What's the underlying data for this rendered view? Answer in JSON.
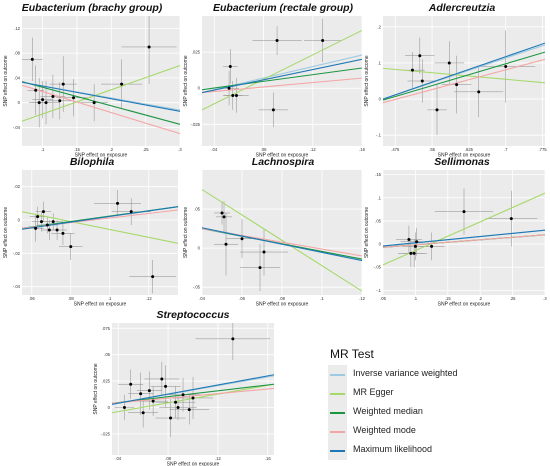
{
  "legend": {
    "title": "MR Test",
    "items": [
      {
        "label": "Inverse variance weighted",
        "color": "#9ecae1"
      },
      {
        "label": "MR Egger",
        "color": "#a6d96a"
      },
      {
        "label": "Weighted median",
        "color": "#1a9641"
      },
      {
        "label": "Weighted mode",
        "color": "#f4a6a6"
      },
      {
        "label": "Maximum likelihood",
        "color": "#1f78b4"
      }
    ]
  },
  "chart_data": [
    {
      "type": "scatter",
      "title": "Eubacterium (brachy group)",
      "xlabel": "SNP effect on exposure",
      "ylabel": "SNP effect on outcome",
      "xlim": [
        0.07,
        0.3
      ],
      "ylim": [
        -0.07,
        0.14
      ],
      "xticks": [
        0.1,
        0.15,
        0.2,
        0.25,
        0.3
      ],
      "yticks": [
        -0.04,
        0.0,
        0.04,
        0.08,
        0.12
      ],
      "points": [
        {
          "x": 0.085,
          "y": 0.07,
          "xe": 0.015,
          "ye": 0.035
        },
        {
          "x": 0.09,
          "y": 0.02,
          "xe": 0.012,
          "ye": 0.04
        },
        {
          "x": 0.095,
          "y": 0.0,
          "xe": 0.015,
          "ye": 0.04
        },
        {
          "x": 0.1,
          "y": 0.005,
          "xe": 0.015,
          "ye": 0.03
        },
        {
          "x": 0.105,
          "y": 0.0,
          "xe": 0.02,
          "ye": 0.035
        },
        {
          "x": 0.115,
          "y": 0.01,
          "xe": 0.018,
          "ye": 0.035
        },
        {
          "x": 0.125,
          "y": 0.003,
          "xe": 0.02,
          "ye": 0.03
        },
        {
          "x": 0.13,
          "y": 0.03,
          "xe": 0.02,
          "ye": 0.045
        },
        {
          "x": 0.145,
          "y": 0.008,
          "xe": 0.025,
          "ye": 0.03
        },
        {
          "x": 0.175,
          "y": 0.0,
          "xe": 0.02,
          "ye": 0.03
        },
        {
          "x": 0.215,
          "y": 0.03,
          "xe": 0.03,
          "ye": 0.04
        },
        {
          "x": 0.255,
          "y": 0.09,
          "xe": 0.04,
          "ye": 0.06
        }
      ],
      "lines": [
        {
          "method": "Inverse variance weighted",
          "y0": 0.033,
          "y1": -0.012
        },
        {
          "method": "MR Egger",
          "y0": -0.03,
          "y1": 0.06
        },
        {
          "method": "Weighted median",
          "y0": 0.034,
          "y1": -0.035
        },
        {
          "method": "Weighted mode",
          "y0": 0.028,
          "y1": -0.05
        },
        {
          "method": "Maximum likelihood",
          "y0": 0.033,
          "y1": -0.014
        }
      ]
    },
    {
      "type": "scatter",
      "title": "Eubacterium (rectale group)",
      "xlabel": "SNP effect on exposure",
      "ylabel": "SNP effect on outcome",
      "xlim": [
        0.03,
        0.16
      ],
      "ylim": [
        -0.04,
        0.05
      ],
      "xticks": [
        0.04,
        0.08,
        0.12,
        0.16
      ],
      "yticks": [
        -0.025,
        0.0,
        0.025
      ],
      "points": [
        {
          "x": 0.052,
          "y": 0.0,
          "xe": 0.008,
          "ye": 0.012
        },
        {
          "x": 0.053,
          "y": 0.015,
          "xe": 0.006,
          "ye": 0.012
        },
        {
          "x": 0.055,
          "y": -0.005,
          "xe": 0.008,
          "ye": 0.01
        },
        {
          "x": 0.058,
          "y": -0.005,
          "xe": 0.01,
          "ye": 0.012
        },
        {
          "x": 0.088,
          "y": -0.015,
          "xe": 0.012,
          "ye": 0.012
        },
        {
          "x": 0.091,
          "y": 0.033,
          "xe": 0.02,
          "ye": 0.01
        },
        {
          "x": 0.128,
          "y": 0.033,
          "xe": 0.015,
          "ye": 0.015
        }
      ],
      "lines": [
        {
          "method": "Inverse variance weighted",
          "y0": -0.003,
          "y1": 0.023
        },
        {
          "method": "MR Egger",
          "y0": -0.015,
          "y1": 0.04
        },
        {
          "method": "Weighted median",
          "y0": -0.001,
          "y1": 0.014
        },
        {
          "method": "Weighted mode",
          "y0": -0.003,
          "y1": 0.007
        },
        {
          "method": "Maximum likelihood",
          "y0": -0.003,
          "y1": 0.02
        }
      ]
    },
    {
      "type": "scatter",
      "title": "Adlercreutzia",
      "xlabel": "SNP effect on exposure",
      "ylabel": "SNP effect on outcome",
      "xlim": [
        0.45,
        0.78
      ],
      "ylim": [
        -0.13,
        0.23
      ],
      "xticks": [
        0.475,
        0.55,
        0.625,
        0.7,
        0.775
      ],
      "yticks": [
        -0.1,
        0.0,
        0.1,
        0.2
      ],
      "points": [
        {
          "x": 0.51,
          "y": 0.08,
          "xe": 0.025,
          "ye": 0.05
        },
        {
          "x": 0.525,
          "y": 0.12,
          "xe": 0.03,
          "ye": 0.05
        },
        {
          "x": 0.53,
          "y": 0.05,
          "xe": 0.03,
          "ye": 0.06
        },
        {
          "x": 0.56,
          "y": -0.03,
          "xe": 0.02,
          "ye": 0.07
        },
        {
          "x": 0.585,
          "y": 0.1,
          "xe": 0.03,
          "ye": 0.06
        },
        {
          "x": 0.6,
          "y": 0.04,
          "xe": 0.03,
          "ye": 0.08
        },
        {
          "x": 0.645,
          "y": 0.02,
          "xe": 0.05,
          "ye": 0.07
        },
        {
          "x": 0.7,
          "y": 0.09,
          "xe": 0.06,
          "ye": 0.1
        }
      ],
      "lines": [
        {
          "method": "Inverse variance weighted",
          "y0": 0.0,
          "y1": 0.15
        },
        {
          "method": "MR Egger",
          "y0": 0.085,
          "y1": 0.045
        },
        {
          "method": "Weighted median",
          "y0": -0.003,
          "y1": 0.13
        },
        {
          "method": "Weighted mode",
          "y0": -0.01,
          "y1": 0.11
        },
        {
          "method": "Maximum likelihood",
          "y0": 0.0,
          "y1": 0.155
        }
      ]
    },
    {
      "type": "scatter",
      "title": "Bilophila",
      "xlabel": "SNP effect on exposure",
      "ylabel": "SNP effect on outcome",
      "xlim": [
        0.055,
        0.135
      ],
      "ylim": [
        -0.045,
        0.03
      ],
      "xticks": [
        0.06,
        0.08,
        0.1,
        0.12
      ],
      "yticks": [
        -0.04,
        -0.02,
        0.0,
        0.02
      ],
      "points": [
        {
          "x": 0.062,
          "y": -0.005,
          "xe": 0.004,
          "ye": 0.008
        },
        {
          "x": 0.063,
          "y": 0.002,
          "xe": 0.004,
          "ye": 0.006
        },
        {
          "x": 0.065,
          "y": -0.001,
          "xe": 0.005,
          "ye": 0.006
        },
        {
          "x": 0.066,
          "y": 0.005,
          "xe": 0.004,
          "ye": 0.006
        },
        {
          "x": 0.068,
          "y": -0.003,
          "xe": 0.005,
          "ye": 0.005
        },
        {
          "x": 0.069,
          "y": -0.006,
          "xe": 0.004,
          "ye": 0.006
        },
        {
          "x": 0.071,
          "y": -0.001,
          "xe": 0.005,
          "ye": 0.005
        },
        {
          "x": 0.073,
          "y": -0.006,
          "xe": 0.005,
          "ye": 0.006
        },
        {
          "x": 0.076,
          "y": -0.008,
          "xe": 0.006,
          "ye": 0.007
        },
        {
          "x": 0.08,
          "y": -0.016,
          "xe": 0.006,
          "ye": 0.008
        },
        {
          "x": 0.104,
          "y": 0.01,
          "xe": 0.012,
          "ye": 0.008
        },
        {
          "x": 0.111,
          "y": 0.005,
          "xe": 0.01,
          "ye": 0.008
        },
        {
          "x": 0.122,
          "y": -0.034,
          "xe": 0.012,
          "ye": 0.01
        }
      ],
      "lines": [
        {
          "method": "Inverse variance weighted",
          "y0": -0.005,
          "y1": 0.008
        },
        {
          "method": "MR Egger",
          "y0": 0.005,
          "y1": -0.014
        },
        {
          "method": "Weighted median",
          "y0": -0.005,
          "y1": 0.008
        },
        {
          "method": "Weighted mode",
          "y0": -0.005,
          "y1": 0.006
        },
        {
          "method": "Maximum likelihood",
          "y0": -0.0055,
          "y1": 0.008
        }
      ]
    },
    {
      "type": "scatter",
      "title": "Lachnospira",
      "xlabel": "SNP effect on exposure",
      "ylabel": "SNP effect on outcome",
      "xlim": [
        0.04,
        0.12
      ],
      "ylim": [
        -0.06,
        0.1
      ],
      "xticks": [
        0.04,
        0.06,
        0.08,
        0.1,
        0.12
      ],
      "yticks": [
        -0.05,
        0.0,
        0.05
      ],
      "points": [
        {
          "x": 0.05,
          "y": 0.045,
          "xe": 0.004,
          "ye": 0.015
        },
        {
          "x": 0.051,
          "y": 0.04,
          "xe": 0.004,
          "ye": 0.02
        },
        {
          "x": 0.052,
          "y": 0.005,
          "xe": 0.006,
          "ye": 0.04
        },
        {
          "x": 0.06,
          "y": 0.012,
          "xe": 0.008,
          "ye": 0.025
        },
        {
          "x": 0.069,
          "y": -0.025,
          "xe": 0.01,
          "ye": 0.03
        },
        {
          "x": 0.071,
          "y": -0.005,
          "xe": 0.012,
          "ye": 0.03
        }
      ],
      "lines": [
        {
          "method": "Inverse variance weighted",
          "y0": 0.025,
          "y1": -0.015
        },
        {
          "method": "MR Egger",
          "y0": 0.075,
          "y1": -0.055
        },
        {
          "method": "Weighted median",
          "y0": 0.025,
          "y1": -0.014
        },
        {
          "method": "Weighted mode",
          "y0": 0.025,
          "y1": -0.01
        },
        {
          "method": "Maximum likelihood",
          "y0": 0.026,
          "y1": -0.016
        }
      ]
    },
    {
      "type": "scatter",
      "title": "Sellimonas",
      "xlabel": "SNP effect on exposure",
      "ylabel": "SNP effect on outcome",
      "xlim": [
        0.05,
        0.3
      ],
      "ylim": [
        -0.11,
        0.16
      ],
      "xticks": [
        0.05,
        0.1,
        0.15,
        0.2,
        0.25,
        0.3
      ],
      "yticks": [
        -0.1,
        -0.05,
        0.0,
        0.05,
        0.1,
        0.15
      ],
      "points": [
        {
          "x": 0.09,
          "y": 0.01,
          "xe": 0.02,
          "ye": 0.03
        },
        {
          "x": 0.093,
          "y": -0.02,
          "xe": 0.02,
          "ye": 0.03
        },
        {
          "x": 0.098,
          "y": -0.02,
          "xe": 0.02,
          "ye": 0.03
        },
        {
          "x": 0.1,
          "y": -0.005,
          "xe": 0.02,
          "ye": 0.03
        },
        {
          "x": 0.102,
          "y": 0.005,
          "xe": 0.025,
          "ye": 0.03
        },
        {
          "x": 0.125,
          "y": -0.005,
          "xe": 0.02,
          "ye": 0.03
        },
        {
          "x": 0.175,
          "y": 0.07,
          "xe": 0.045,
          "ye": 0.05
        },
        {
          "x": 0.248,
          "y": 0.055,
          "xe": 0.04,
          "ye": 0.06
        }
      ],
      "lines": [
        {
          "method": "Inverse variance weighted",
          "y0": -0.005,
          "y1": 0.03
        },
        {
          "method": "MR Egger",
          "y0": -0.045,
          "y1": 0.11
        },
        {
          "method": "Weighted median",
          "y0": -0.007,
          "y1": 0.02
        },
        {
          "method": "Weighted mode",
          "y0": -0.007,
          "y1": 0.02
        },
        {
          "method": "Maximum likelihood",
          "y0": -0.004,
          "y1": 0.03
        }
      ]
    },
    {
      "type": "scatter",
      "title": "Streptococcus",
      "xlabel": "SNP effect on exposure",
      "ylabel": "SNP effect on outcome",
      "xlim": [
        0.035,
        0.165
      ],
      "ylim": [
        -0.045,
        0.08
      ],
      "xticks": [
        0.04,
        0.08,
        0.12,
        0.16
      ],
      "yticks": [
        -0.025,
        0.0,
        0.025,
        0.05,
        0.075
      ],
      "points": [
        {
          "x": 0.045,
          "y": 0.0,
          "xe": 0.008,
          "ye": 0.012
        },
        {
          "x": 0.05,
          "y": 0.022,
          "xe": 0.01,
          "ye": 0.014
        },
        {
          "x": 0.058,
          "y": 0.013,
          "xe": 0.01,
          "ye": 0.02
        },
        {
          "x": 0.06,
          "y": -0.005,
          "xe": 0.012,
          "ye": 0.014
        },
        {
          "x": 0.065,
          "y": 0.016,
          "xe": 0.01,
          "ye": 0.018
        },
        {
          "x": 0.068,
          "y": 0.006,
          "xe": 0.012,
          "ye": 0.014
        },
        {
          "x": 0.075,
          "y": 0.027,
          "xe": 0.014,
          "ye": 0.016
        },
        {
          "x": 0.078,
          "y": 0.02,
          "xe": 0.012,
          "ye": 0.02
        },
        {
          "x": 0.082,
          "y": -0.01,
          "xe": 0.012,
          "ye": 0.018
        },
        {
          "x": 0.086,
          "y": 0.005,
          "xe": 0.016,
          "ye": 0.015
        },
        {
          "x": 0.088,
          "y": 0.0,
          "xe": 0.015,
          "ye": 0.012
        },
        {
          "x": 0.092,
          "y": 0.012,
          "xe": 0.015,
          "ye": 0.016
        },
        {
          "x": 0.097,
          "y": -0.002,
          "xe": 0.016,
          "ye": 0.014
        },
        {
          "x": 0.1,
          "y": 0.009,
          "xe": 0.016,
          "ye": 0.02
        },
        {
          "x": 0.132,
          "y": 0.065,
          "xe": 0.03,
          "ye": 0.02
        }
      ],
      "lines": [
        {
          "method": "Inverse variance weighted",
          "y0": 0.003,
          "y1": 0.03
        },
        {
          "method": "MR Egger",
          "y0": -0.005,
          "y1": 0.022
        },
        {
          "method": "Weighted median",
          "y0": 0.004,
          "y1": 0.022
        },
        {
          "method": "Weighted mode",
          "y0": 0.004,
          "y1": 0.018
        },
        {
          "method": "Maximum likelihood",
          "y0": 0.003,
          "y1": 0.031
        }
      ]
    }
  ]
}
